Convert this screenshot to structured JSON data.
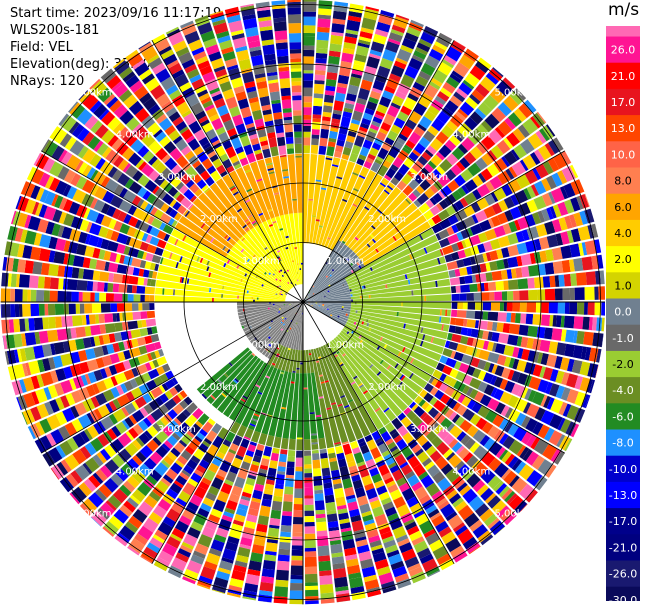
{
  "header": {
    "start_time": "Start time: 2023/09/16 11:17:19",
    "instrument": "WLS200s-181",
    "field": "Field: VEL",
    "elevation": "Elevation(deg): 35.30",
    "nrays": "NRays: 120"
  },
  "chart_data": {
    "type": "heatmap",
    "projection": "polar-ppi",
    "field": "VEL",
    "units": "m/s",
    "n_rays": 120,
    "range_rings_km": [
      1.0,
      2.0,
      3.0,
      4.0,
      5.0
    ],
    "range_ring_labels": [
      "1.00km",
      "2.00km",
      "3.00km",
      "4.00km",
      "5.00km"
    ],
    "regions": [
      {
        "azimuth_deg": [
          270,
          360
        ],
        "range_km": [
          0.3,
          2.5
        ],
        "velocity": 2.0,
        "color": "#ffff00"
      },
      {
        "azimuth_deg": [
          0,
          60
        ],
        "range_km": [
          1.0,
          2.5
        ],
        "velocity": 4.0,
        "color": "#ffcc00"
      },
      {
        "azimuth_deg": [
          300,
          360
        ],
        "range_km": [
          1.5,
          2.8
        ],
        "velocity": 6.0,
        "color": "#ffa500"
      },
      {
        "azimuth_deg": [
          30,
          120
        ],
        "range_km": [
          0.0,
          1.2
        ],
        "velocity": 0.0,
        "color": "#708090"
      },
      {
        "azimuth_deg": [
          180,
          270
        ],
        "range_km": [
          0.0,
          1.1
        ],
        "velocity": 0.0,
        "color": "#808080"
      },
      {
        "azimuth_deg": [
          60,
          180
        ],
        "range_km": [
          0.8,
          2.5
        ],
        "velocity": -2.0,
        "color": "#9acd32"
      },
      {
        "azimuth_deg": [
          150,
          210
        ],
        "range_km": [
          0.8,
          2.5
        ],
        "velocity": -4.0,
        "color": "#6b8e23"
      },
      {
        "azimuth_deg": [
          170,
          230
        ],
        "range_km": [
          1.2,
          2.3
        ],
        "velocity": -6.0,
        "color": "#228b22"
      },
      {
        "azimuth_deg": [
          0,
          360
        ],
        "range_km": [
          2.5,
          5.6
        ],
        "velocity": null,
        "color": "noise"
      }
    ],
    "colorbar": {
      "title": "m/s",
      "ticks": [
        "26.0",
        "21.0",
        "17.0",
        "13.0",
        "10.0",
        "8.0",
        "6.0",
        "4.0",
        "2.0",
        "1.0",
        "0.0",
        "-1.0",
        "-2.0",
        "-4.0",
        "-6.0",
        "-8.0",
        "-10.0",
        "-13.0",
        "-17.0",
        "-21.0",
        "-26.0",
        "-30.0"
      ],
      "colors": [
        "#ff1493",
        "#ff0000",
        "#e8141e",
        "#ff4500",
        "#ff6347",
        "#ff7f50",
        "#ffa500",
        "#ffcc00",
        "#ffff00",
        "#d4d400",
        "#708090",
        "#696969",
        "#9acd32",
        "#6b8e23",
        "#228b22",
        "#1e90ff",
        "#0000cd",
        "#0000ff",
        "#00008b",
        "#000080",
        "#191970",
        "#0a0a5a"
      ],
      "extra_top_color": "#ff69b4"
    }
  }
}
